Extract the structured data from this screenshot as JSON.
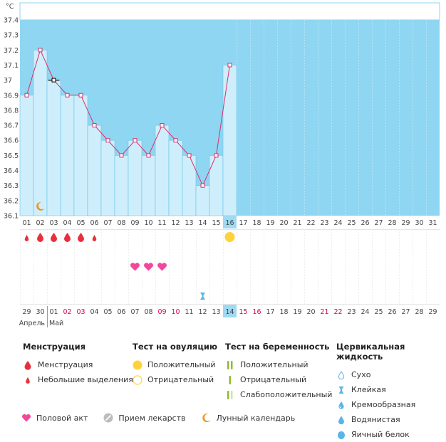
{
  "chart_data": {
    "type": "line",
    "ylabel": "°C",
    "y_ticks": [
      "37.4",
      "37.3",
      "37.2",
      "37.1",
      "37",
      "36.9",
      "36.8",
      "36.7",
      "36.6",
      "36.5",
      "36.4",
      "36.3",
      "36.2",
      "36.1"
    ],
    "ylim": [
      36.1,
      37.4
    ],
    "cover_line": 37.0,
    "x_top": [
      "01",
      "02",
      "03",
      "04",
      "05",
      "06",
      "07",
      "08",
      "09",
      "10",
      "11",
      "12",
      "13",
      "14",
      "15",
      "16",
      "17",
      "18",
      "19",
      "20",
      "21",
      "22",
      "23",
      "24",
      "25",
      "26",
      "27",
      "28",
      "29",
      "30",
      "31"
    ],
    "current_index": 15,
    "temperatures": [
      36.9,
      37.2,
      37.0,
      36.9,
      36.9,
      36.7,
      36.6,
      36.5,
      36.6,
      36.5,
      36.7,
      36.6,
      36.5,
      36.3,
      36.5,
      37.1
    ],
    "x_bottom": [
      "29",
      "30",
      "01",
      "02",
      "03",
      "04",
      "05",
      "06",
      "07",
      "08",
      "09",
      "10",
      "11",
      "12",
      "13",
      "14",
      "15",
      "16",
      "17",
      "18",
      "19",
      "20",
      "21",
      "22",
      "23",
      "24",
      "25",
      "26",
      "27",
      "28",
      "29"
    ],
    "x_bottom_red_indices": [
      3,
      4,
      10,
      11,
      16,
      17,
      22,
      23
    ],
    "month_labels": [
      "Апрель",
      "Май"
    ],
    "menstruation": [
      {
        "day_index": 0,
        "type": "small"
      },
      {
        "day_index": 1,
        "type": "full"
      },
      {
        "day_index": 2,
        "type": "full"
      },
      {
        "day_index": 3,
        "type": "full"
      },
      {
        "day_index": 4,
        "type": "full"
      },
      {
        "day_index": 5,
        "type": "small"
      }
    ],
    "ovulation_test": [
      {
        "day_index": 15,
        "result": "positive"
      }
    ],
    "intercourse": [
      8,
      9,
      10
    ],
    "cervical_fluid": [
      {
        "day_index": 13,
        "type": "sticky"
      }
    ],
    "lunar": [
      {
        "day_index": 1
      }
    ]
  },
  "legend": {
    "menstruation": {
      "title": "Менструация",
      "items": [
        "Менструация",
        "Небольшие выделения"
      ]
    },
    "ovulation": {
      "title": "Тест на овуляцию",
      "items": [
        "Положительный",
        "Отрицательный"
      ]
    },
    "pregnancy": {
      "title": "Тест на беременность",
      "items": [
        "Положительный",
        "Отрицательный",
        "Слабоположительный"
      ]
    },
    "cervical": {
      "title": "Цервикальная жидкость",
      "items": [
        "Сухо",
        "Клейкая",
        "Кремообразная",
        "Водянистая",
        "Яичный белок"
      ]
    },
    "bottom": [
      "Половой акт",
      "Прием лекарств",
      "Лунный календарь"
    ]
  },
  "colors": {
    "band": "#8fd6f2",
    "bar": "#cfeefc",
    "bar_edge": "#66c4ea",
    "line": "#d9306a",
    "highlight_bg": "#9fd9f2",
    "heart": "#f2479b",
    "drop": "#e8303d",
    "sun": "#ffd23c",
    "moon": "#f0951a",
    "pregnancy_green": "#8dbc2e"
  }
}
